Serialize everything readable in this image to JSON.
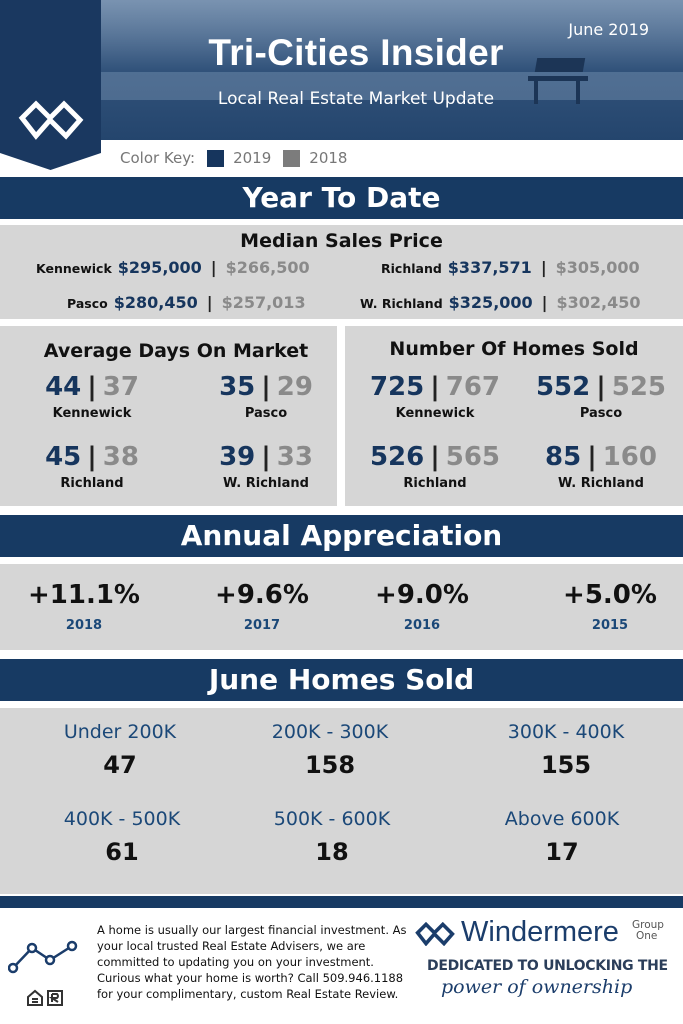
{
  "header": {
    "title": "Tri-Cities Insider",
    "subtitle": "Local Real Estate Market Update",
    "date": "June 2019",
    "logo_icon": "windermere-w-icon"
  },
  "color_key": {
    "label": "Color Key:",
    "items": [
      {
        "label": "2019",
        "color": "#16355d"
      },
      {
        "label": "2018",
        "color": "#7c7c7c"
      }
    ]
  },
  "ytd": {
    "title": "Year To Date",
    "median": {
      "title": "Median Sales Price",
      "rows": [
        {
          "city": "Kennewick",
          "v2019": "$295,000",
          "v2018": "$266,500"
        },
        {
          "city": "Richland",
          "v2019": "$337,571",
          "v2018": "$305,000"
        },
        {
          "city": "Pasco",
          "v2019": "$280,450",
          "v2018": "$257,013"
        },
        {
          "city": "W. Richland",
          "v2019": "$325,000",
          "v2018": "$302,450"
        }
      ]
    },
    "dom": {
      "title": "Average Days On Market",
      "items": [
        {
          "city": "Kennewick",
          "v2019": "44",
          "v2018": "37"
        },
        {
          "city": "Pasco",
          "v2019": "35",
          "v2018": "29"
        },
        {
          "city": "Richland",
          "v2019": "45",
          "v2018": "38"
        },
        {
          "city": "W. Richland",
          "v2019": "39",
          "v2018": "33"
        }
      ]
    },
    "sold": {
      "title": "Number Of Homes Sold",
      "items": [
        {
          "city": "Kennewick",
          "v2019": "725",
          "v2018": "767"
        },
        {
          "city": "Pasco",
          "v2019": "552",
          "v2018": "525"
        },
        {
          "city": "Richland",
          "v2019": "526",
          "v2018": "565"
        },
        {
          "city": "W. Richland",
          "v2019": "85",
          "v2018": "160"
        }
      ]
    }
  },
  "appreciation": {
    "title": "Annual Appreciation",
    "items": [
      {
        "pct": "+11.1%",
        "year": "2018"
      },
      {
        "pct": "+9.6%",
        "year": "2017"
      },
      {
        "pct": "+9.0%",
        "year": "2016"
      },
      {
        "pct": "+5.0%",
        "year": "2015"
      }
    ]
  },
  "june_sold": {
    "title": "June Homes Sold",
    "items": [
      {
        "range": "Under 200K",
        "count": "47"
      },
      {
        "range": "200K - 300K",
        "count": "158"
      },
      {
        "range": "300K - 400K",
        "count": "155"
      },
      {
        "range": "400K - 500K",
        "count": "61"
      },
      {
        "range": "500K - 600K",
        "count": "18"
      },
      {
        "range": "Above 600K",
        "count": "17"
      }
    ]
  },
  "footer": {
    "disclaimer": "A home is usually our largest financial investment. As your local trusted Real Estate Advisers, we are committed to updating you on your investment. Curious what your home is worth? Call 509.946.1188 for your complimentary, custom Real Estate Review.",
    "brand_name": "Windermere",
    "brand_group_line1": "Group",
    "brand_group_line2": "One",
    "tagline1": "DEDICATED TO UNLOCKING THE",
    "tagline2": "power of ownership",
    "icons": [
      "line-chart-icon",
      "equal-housing-icon",
      "realtor-icon"
    ]
  }
}
